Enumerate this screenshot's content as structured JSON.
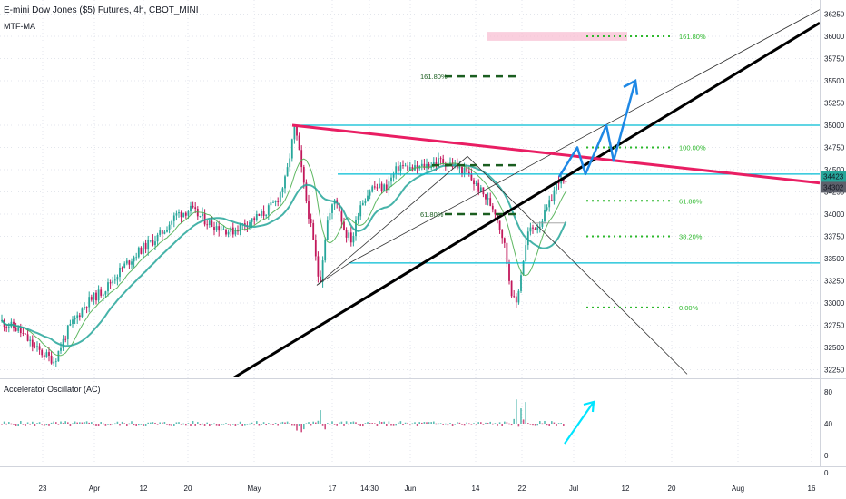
{
  "header": {
    "title": "E-mini Dow Jones ($5) Futures, 4h, CBOT_MINI",
    "indicator": "MTF-MA"
  },
  "oscillator": {
    "title": "Accelerator Oscillator (AC)",
    "ticks": [
      "80",
      "40",
      "0"
    ]
  },
  "colors": {
    "up": "#26a69a",
    "down": "#c2185b",
    "ma_fast": "#4caf50",
    "ma_slow": "#26a69a",
    "trendline_pink": "#e91e63",
    "channel_black": "#000000",
    "fib_cyan": "#00bcd4",
    "fib_green": "#2eb82e",
    "fib_dark_green": "#1b5e20",
    "projection_blue": "#1e88e5",
    "projection_cyan": "#00e5ff",
    "price_box": "#26a69a",
    "price_box_dark": "#5d606b",
    "zone_pink": "#f8bbd0"
  },
  "chart_data": {
    "type": "candlestick",
    "title": "E-mini Dow Jones ($5) Futures, 4h, CBOT_MINI",
    "ylim": [
      32150,
      36350
    ],
    "y_ticks": [
      32250,
      32500,
      32750,
      33000,
      33250,
      33500,
      33750,
      34000,
      34250,
      34500,
      34750,
      35000,
      35250,
      35500,
      35750,
      36000,
      36250
    ],
    "x_tick_labels": [
      "23",
      "Apr",
      "12",
      "20",
      "May",
      "17",
      "14:30",
      "Jun",
      "14",
      "22",
      "Jul",
      "12",
      "20",
      "Aug",
      "16"
    ],
    "current_prices": [
      "34423",
      "34302"
    ],
    "price_path": [
      [
        0,
        32800
      ],
      [
        20,
        32700
      ],
      [
        40,
        32480
      ],
      [
        60,
        32350
      ],
      [
        75,
        32700
      ],
      [
        95,
        33000
      ],
      [
        115,
        33150
      ],
      [
        135,
        33400
      ],
      [
        155,
        33600
      ],
      [
        175,
        33750
      ],
      [
        195,
        34000
      ],
      [
        210,
        34050
      ],
      [
        230,
        33900
      ],
      [
        255,
        33800
      ],
      [
        270,
        33900
      ],
      [
        290,
        34000
      ],
      [
        305,
        34150
      ],
      [
        315,
        34400
      ],
      [
        325,
        35000
      ],
      [
        335,
        34300
      ],
      [
        345,
        33700
      ],
      [
        352,
        33200
      ],
      [
        360,
        33900
      ],
      [
        370,
        34200
      ],
      [
        380,
        33800
      ],
      [
        388,
        33700
      ],
      [
        396,
        34100
      ],
      [
        410,
        34300
      ],
      [
        425,
        34300
      ],
      [
        440,
        34550
      ],
      [
        455,
        34500
      ],
      [
        470,
        34550
      ],
      [
        485,
        34600
      ],
      [
        500,
        34550
      ],
      [
        515,
        34450
      ],
      [
        530,
        34250
      ],
      [
        545,
        34050
      ],
      [
        555,
        33700
      ],
      [
        562,
        33200
      ],
      [
        568,
        32950
      ],
      [
        575,
        33400
      ],
      [
        582,
        33800
      ],
      [
        595,
        33900
      ],
      [
        605,
        34100
      ],
      [
        615,
        34400
      ],
      [
        625,
        34300
      ]
    ],
    "fib_levels": [
      {
        "label": "0.00%",
        "value": 32950
      },
      {
        "label": "38.20%",
        "value": 33750
      },
      {
        "label": "61.80%",
        "value": 34150
      },
      {
        "label": "100.00%",
        "value": 34750
      },
      {
        "label": "161.80%",
        "value": 36000
      }
    ],
    "fib_left_labels": [
      {
        "label": "161.80%",
        "value": 35550
      },
      {
        "label": "61.80%",
        "value": 34000
      }
    ],
    "horizontal_levels": [
      35000,
      34450,
      33450
    ],
    "oscillator_ylim": [
      -10,
      100
    ]
  }
}
